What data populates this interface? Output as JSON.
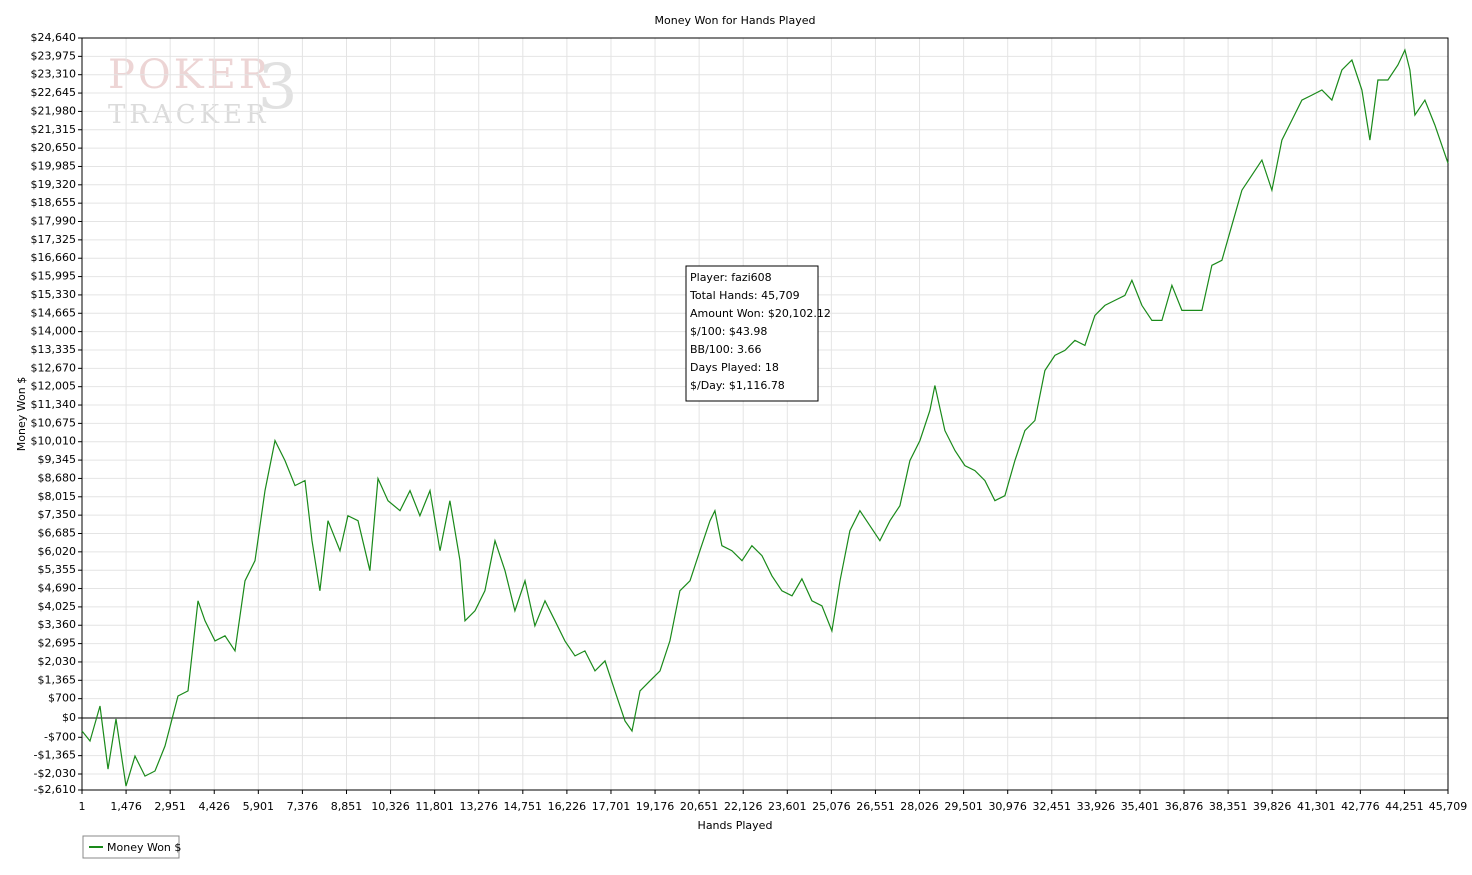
{
  "chart_data": {
    "type": "line",
    "title": "Money Won for Hands Played",
    "x_label": "Hands Played",
    "y_label": "Money Won $",
    "grid": true,
    "legend": "bottom-left",
    "watermark": {
      "top": "POKER",
      "bottom": "TRACKER",
      "mark": "3"
    },
    "tooltip": [
      "Player: fazi608",
      "Total Hands: 45,709",
      "Amount Won: $20,102.12",
      "$/100: $43.98",
      "BB/100: 3.66",
      "Days Played: 18",
      "$/Day: $1,116.78"
    ],
    "xlim": [
      1,
      45709
    ],
    "ylim": [
      -2610,
      24640
    ],
    "xticks": [
      1,
      {
        "value": 1476,
        "label": "1,476"
      },
      {
        "value": 2951,
        "label": "2,951"
      },
      {
        "value": 4426,
        "label": "4,426"
      },
      {
        "value": 5901,
        "label": "5,901"
      },
      {
        "value": 7376,
        "label": "7,376"
      },
      {
        "value": 8851,
        "label": "8,851"
      },
      {
        "value": 10326,
        "label": "10,326"
      },
      {
        "value": 11801,
        "label": "11,801"
      },
      {
        "value": 13276,
        "label": "13,276"
      },
      {
        "value": 14751,
        "label": "14,751"
      },
      {
        "value": 16226,
        "label": "16,226"
      },
      {
        "value": 17701,
        "label": "17,701"
      },
      {
        "value": 19176,
        "label": "19,176"
      },
      {
        "value": 20651,
        "label": "20,651"
      },
      {
        "value": 22126,
        "label": "22,126"
      },
      {
        "value": 23601,
        "label": "23,601"
      },
      {
        "value": 25076,
        "label": "25,076"
      },
      {
        "value": 26551,
        "label": "26,551"
      },
      {
        "value": 28026,
        "label": "28,026"
      },
      {
        "value": 29501,
        "label": "29,501"
      },
      {
        "value": 30976,
        "label": "30,976"
      },
      {
        "value": 32451,
        "label": "32,451"
      },
      {
        "value": 33926,
        "label": "33,926"
      },
      {
        "value": 35401,
        "label": "35,401"
      },
      {
        "value": 36876,
        "label": "36,876"
      },
      {
        "value": 38351,
        "label": "38,351"
      },
      {
        "value": 39826,
        "label": "39,826"
      },
      {
        "value": 41301,
        "label": "41,301"
      },
      {
        "value": 42776,
        "label": "42,776"
      },
      {
        "value": 44251,
        "label": "44,251"
      },
      {
        "value": 45709,
        "label": "45,709"
      }
    ],
    "yticks": [
      {
        "value": -2610,
        "label": "-$2,610"
      },
      {
        "value": -2030,
        "label": "-$2,030"
      },
      {
        "value": -1365,
        "label": "-$1,365"
      },
      {
        "value": -700,
        "label": "-$700"
      },
      {
        "value": 0,
        "label": "$0"
      },
      {
        "value": 700,
        "label": "$700"
      },
      {
        "value": 1365,
        "label": "$1,365"
      },
      {
        "value": 2030,
        "label": "$2,030"
      },
      {
        "value": 2695,
        "label": "$2,695"
      },
      {
        "value": 3360,
        "label": "$3,360"
      },
      {
        "value": 4025,
        "label": "$4,025"
      },
      {
        "value": 4690,
        "label": "$4,690"
      },
      {
        "value": 5355,
        "label": "$5,355"
      },
      {
        "value": 6020,
        "label": "$6,020"
      },
      {
        "value": 6685,
        "label": "$6,685"
      },
      {
        "value": 7350,
        "label": "$7,350"
      },
      {
        "value": 8015,
        "label": "$8,015"
      },
      {
        "value": 8680,
        "label": "$8,680"
      },
      {
        "value": 9345,
        "label": "$9,345"
      },
      {
        "value": 10010,
        "label": "$10,010"
      },
      {
        "value": 10675,
        "label": "$10,675"
      },
      {
        "value": 11340,
        "label": "$11,340"
      },
      {
        "value": 12005,
        "label": "$12,005"
      },
      {
        "value": 12670,
        "label": "$12,670"
      },
      {
        "value": 13335,
        "label": "$13,335"
      },
      {
        "value": 14000,
        "label": "$14,000"
      },
      {
        "value": 14665,
        "label": "$14,665"
      },
      {
        "value": 15330,
        "label": "$15,330"
      },
      {
        "value": 15995,
        "label": "$15,995"
      },
      {
        "value": 16660,
        "label": "$16,660"
      },
      {
        "value": 17325,
        "label": "$17,325"
      },
      {
        "value": 17990,
        "label": "$17,990"
      },
      {
        "value": 18655,
        "label": "$18,655"
      },
      {
        "value": 19320,
        "label": "$19,320"
      },
      {
        "value": 19985,
        "label": "$19,985"
      },
      {
        "value": 20650,
        "label": "$20,650"
      },
      {
        "value": 21315,
        "label": "$21,315"
      },
      {
        "value": 21980,
        "label": "$21,980"
      },
      {
        "value": 22645,
        "label": "$22,645"
      },
      {
        "value": 23310,
        "label": "$23,310"
      },
      {
        "value": 23975,
        "label": "$23,975"
      },
      {
        "value": 24640,
        "label": "$24,640"
      }
    ],
    "x": [
      1,
      268,
      602,
      870,
      1138,
      1472,
      1773,
      2108,
      2443,
      2777,
      3212,
      3547,
      3881,
      4116,
      4450,
      4785,
      5119,
      5454,
      5789,
      6123,
      6458,
      6792,
      7127,
      7462,
      7696,
      7963,
      8231,
      8633,
      8900,
      9235,
      9636,
      9904,
      10239,
      10640,
      10975,
      11309,
      11644,
      11979,
      12313,
      12648,
      12815,
      13150,
      13484,
      13819,
      14154,
      14488,
      14823,
      15157,
      15492,
      15827,
      16161,
      16496,
      16830,
      17165,
      17500,
      17834,
      18169,
      18403,
      18671,
      19005,
      19340,
      19674,
      20009,
      20344,
      20678,
      21013,
      21180,
      21414,
      21749,
      22084,
      22418,
      22753,
      23087,
      23422,
      23757,
      24091,
      24426,
      24760,
      25095,
      25363,
      25697,
      26032,
      26366,
      26701,
      27036,
      27370,
      27705,
      28039,
      28374,
      28541,
      28876,
      29211,
      29545,
      29880,
      30214,
      30549,
      30884,
      31218,
      31553,
      31887,
      32222,
      32557,
      32891,
      33226,
      33560,
      33895,
      34230,
      34564,
      34899,
      35133,
      35468,
      35802,
      36137,
      36471,
      36806,
      37141,
      37475,
      37810,
      38144,
      38479,
      38814,
      39148,
      39483,
      39817,
      40152,
      40487,
      40821,
      41156,
      41490,
      41825,
      42160,
      42494,
      42829,
      43096,
      43364,
      43699,
      44033,
      44268,
      44435,
      44602,
      44937,
      45271,
      45709
    ],
    "series": [
      {
        "name": "Money Won $",
        "color": "#1a8a1a",
        "values": [
          -472,
          -835,
          435,
          -1851,
          -36,
          -2468,
          -1379,
          -2105,
          -1923,
          -1016,
          798,
          980,
          4246,
          3520,
          2794,
          2976,
          2431,
          4972,
          5698,
          8238,
          10052,
          9327,
          8419,
          8601,
          6423,
          4609,
          7149,
          6060,
          7331,
          7149,
          5335,
          8673,
          7875,
          7512,
          8238,
          7331,
          8238,
          6060,
          7875,
          5698,
          3520,
          3883,
          4609,
          6423,
          5335,
          3883,
          4972,
          3339,
          4246,
          3520,
          2794,
          2250,
          2431,
          1706,
          2069,
          980,
          -109,
          -472,
          980,
          1343,
          1706,
          2794,
          4609,
          4972,
          6060,
          7149,
          7512,
          6242,
          6060,
          5698,
          6242,
          5879,
          5153,
          4609,
          4427,
          5044,
          4246,
          4064,
          3157,
          4972,
          6786,
          7512,
          6968,
          6423,
          7149,
          7693,
          9327,
          10052,
          11141,
          12048,
          10415,
          9689,
          9145,
          8964,
          8601,
          7875,
          8056,
          9327,
          10415,
          10778,
          12593,
          13137,
          13318,
          13681,
          13500,
          14589,
          14951,
          15133,
          15314,
          15859,
          14951,
          14407,
          14407,
          15677,
          14770,
          14770,
          14770,
          16403,
          16585,
          17855,
          19125,
          19669,
          20214,
          19125,
          20939,
          21665,
          22391,
          22572,
          22754,
          22391,
          23480,
          23843,
          22754,
          20939,
          23117,
          23117,
          23661,
          24205,
          23480,
          21847,
          22391,
          21484,
          20102
        ]
      }
    ]
  }
}
